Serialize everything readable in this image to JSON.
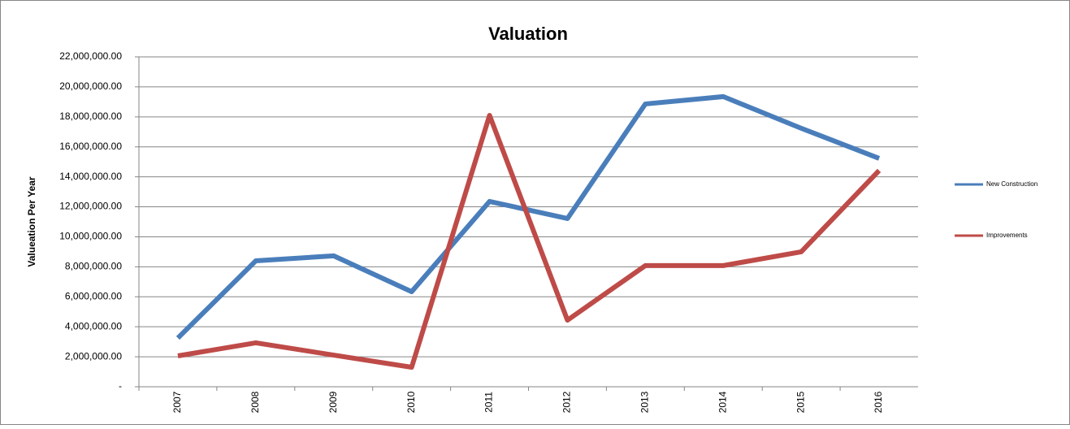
{
  "chart_data": {
    "type": "line",
    "title": "Valuation",
    "y_label": "Valueation Per Year",
    "categories": [
      "2007",
      "2008",
      "2009",
      "2010",
      "2011",
      "2012",
      "2013",
      "2014",
      "2015",
      "2016"
    ],
    "series": [
      {
        "name": "New Construction",
        "color": "#4a7ebb",
        "values": [
          3250000,
          8400000,
          8730000,
          6340000,
          12360000,
          11220000,
          18860000,
          19350000,
          17240000,
          15230000
        ]
      },
      {
        "name": "Improvements",
        "color": "#be4b48",
        "values": [
          2060000,
          2930000,
          2110000,
          1300000,
          18100000,
          4440000,
          8080000,
          8080000,
          9000000,
          14420000
        ]
      }
    ],
    "ylim": [
      0,
      22000000
    ],
    "yticks": [
      {
        "value": 0,
        "label": "-"
      },
      {
        "value": 2000000,
        "label": "2,000,000.00"
      },
      {
        "value": 4000000,
        "label": "4,000,000.00"
      },
      {
        "value": 6000000,
        "label": "6,000,000.00"
      },
      {
        "value": 8000000,
        "label": "8,000,000.00"
      },
      {
        "value": 10000000,
        "label": "10,000,000.00"
      },
      {
        "value": 12000000,
        "label": "12,000,000.00"
      },
      {
        "value": 14000000,
        "label": "14,000,000.00"
      },
      {
        "value": 16000000,
        "label": "16,000,000.00"
      },
      {
        "value": 18000000,
        "label": "18,000,000.00"
      },
      {
        "value": 20000000,
        "label": "20,000,000.00"
      },
      {
        "value": 22000000,
        "label": "22,000,000.00"
      }
    ],
    "grid": true,
    "legend": "right"
  }
}
